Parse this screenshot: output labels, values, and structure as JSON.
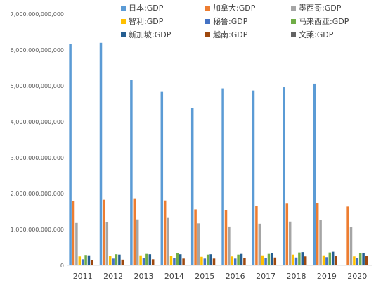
{
  "chart_data": {
    "type": "bar",
    "title": "",
    "xlabel": "",
    "ylabel": "",
    "ylim": [
      0,
      7000000000000
    ],
    "ytick_step": 1000000000000,
    "grid": false,
    "legend_position": "top",
    "categories": [
      "2011",
      "2012",
      "2013",
      "2014",
      "2015",
      "2016",
      "2017",
      "2018",
      "2019",
      "2020"
    ],
    "series": [
      {
        "name": "日本:GDP",
        "color": "#5b9bd5",
        "values": [
          6160000000000,
          6200000000000,
          5160000000000,
          4850000000000,
          4390000000000,
          4930000000000,
          4870000000000,
          4960000000000,
          5060000000000,
          null
        ]
      },
      {
        "name": "加拿大:GDP",
        "color": "#ed7d31",
        "values": [
          1790000000000,
          1830000000000,
          1850000000000,
          1810000000000,
          1560000000000,
          1530000000000,
          1650000000000,
          1720000000000,
          1740000000000,
          1640000000000
        ]
      },
      {
        "name": "墨西哥:GDP",
        "color": "#a5a5a5",
        "values": [
          1180000000000,
          1200000000000,
          1280000000000,
          1320000000000,
          1170000000000,
          1080000000000,
          1160000000000,
          1220000000000,
          1260000000000,
          1070000000000
        ]
      },
      {
        "name": "智利:GDP",
        "color": "#ffc000",
        "values": [
          250000000000,
          270000000000,
          280000000000,
          260000000000,
          240000000000,
          250000000000,
          280000000000,
          300000000000,
          280000000000,
          250000000000
        ]
      },
      {
        "name": "秘鲁:GDP",
        "color": "#4472c4",
        "values": [
          170000000000,
          190000000000,
          200000000000,
          200000000000,
          190000000000,
          190000000000,
          210000000000,
          220000000000,
          230000000000,
          200000000000
        ]
      },
      {
        "name": "马来西亚:GDP",
        "color": "#70ad47",
        "values": [
          290000000000,
          310000000000,
          320000000000,
          340000000000,
          300000000000,
          300000000000,
          320000000000,
          360000000000,
          360000000000,
          340000000000
        ]
      },
      {
        "name": "新加坡:GDP",
        "color": "#255e91",
        "values": [
          280000000000,
          300000000000,
          310000000000,
          310000000000,
          310000000000,
          320000000000,
          340000000000,
          370000000000,
          380000000000,
          340000000000
        ]
      },
      {
        "name": "越南:GDP",
        "color": "#9e480e",
        "values": [
          140000000000,
          160000000000,
          170000000000,
          190000000000,
          190000000000,
          210000000000,
          220000000000,
          250000000000,
          260000000000,
          270000000000
        ]
      },
      {
        "name": "文莱:GDP",
        "color": "#636363",
        "values": [
          18000000000,
          19000000000,
          18000000000,
          17000000000,
          13000000000,
          11000000000,
          12000000000,
          13000000000,
          13000000000,
          12000000000
        ]
      }
    ]
  }
}
